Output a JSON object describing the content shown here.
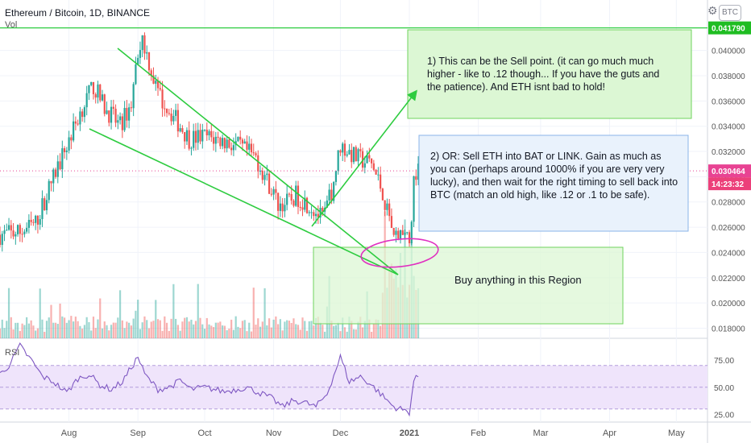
{
  "header": {
    "symbol_title": "Ethereum / Bitcoin, 1D, BINANCE",
    "volume_label": "Vol",
    "rsi_label": "RSI",
    "currency_button": "BTC"
  },
  "price_tags": {
    "resistance": "0.041790",
    "current": "0.030464",
    "countdown": "14:23:32"
  },
  "annotations": {
    "sell_note": "1)  This can be the Sell point.  (it can go much much higher - like to .12 though... If you have the guts and the patience).  And ETH isnt bad to hold!",
    "or_note": "2)  OR:  Sell ETH into BAT or LINK.  Gain as much as you can (perhaps around 1000% if you are very very lucky), and then wait for the right timing to sell back into BTC (match an old high, like .12 or .1 to be safe).",
    "buy_note": "Buy anything in this Region"
  },
  "colors": {
    "up": "#26a69a",
    "down": "#ef5350",
    "trend_line": "#2ecc40",
    "rsi_line": "#7e57c2",
    "rsi_band": "#efe4fb",
    "price_tag": "#e84393",
    "resistance_tag": "#1fbd22",
    "countdown_tag": "#ec407a",
    "sell_box": "#dcf7d4",
    "or_box": "#e9f2fc",
    "buy_box": "#dcf7d4",
    "circle": "#e030c0"
  },
  "chart_data": {
    "type": "candlestick",
    "title": "Ethereum / Bitcoin, 1D, BINANCE",
    "price_axis_ticks": [
      "0.018000",
      "0.020000",
      "0.022000",
      "0.024000",
      "0.026000",
      "0.028000",
      "0.030000",
      "0.032000",
      "0.034000",
      "0.036000",
      "0.038000",
      "0.040000"
    ],
    "price_range": [
      0.0172,
      0.044
    ],
    "rsi_axis_ticks": [
      "25.00",
      "50.00",
      "75.00"
    ],
    "rsi_range": [
      18,
      95
    ],
    "rsi_band": [
      30,
      70
    ],
    "time_axis_ticks": [
      "Aug",
      "Sep",
      "Oct",
      "Nov",
      "Dec",
      "2021",
      "Feb",
      "Mar",
      "Apr",
      "May"
    ],
    "date_range": [
      "2020-07-01",
      "2021-05-15"
    ],
    "last_close": 0.030464,
    "resistance_level": 0.04179,
    "price_path": [
      [
        "2020-07-01",
        0.0254
      ],
      [
        "2020-07-10",
        0.0256
      ],
      [
        "2020-07-17",
        0.0263
      ],
      [
        "2020-07-24",
        0.0295
      ],
      [
        "2020-07-31",
        0.0325
      ],
      [
        "2020-08-07",
        0.0355
      ],
      [
        "2020-08-12",
        0.0372
      ],
      [
        "2020-08-17",
        0.0355
      ],
      [
        "2020-08-24",
        0.034
      ],
      [
        "2020-08-29",
        0.0358
      ],
      [
        "2020-09-01",
        0.04
      ],
      [
        "2020-09-03",
        0.041
      ],
      [
        "2020-09-10",
        0.0365
      ],
      [
        "2020-09-17",
        0.0348
      ],
      [
        "2020-09-24",
        0.033
      ],
      [
        "2020-10-01",
        0.0332
      ],
      [
        "2020-10-10",
        0.0328
      ],
      [
        "2020-10-17",
        0.0323
      ],
      [
        "2020-10-24",
        0.0315
      ],
      [
        "2020-10-31",
        0.029
      ],
      [
        "2020-11-03",
        0.0278
      ],
      [
        "2020-11-08",
        0.028
      ],
      [
        "2020-11-11",
        0.0285
      ],
      [
        "2020-11-17",
        0.0278
      ],
      [
        "2020-11-23",
        0.0266
      ],
      [
        "2020-11-27",
        0.0288
      ],
      [
        "2020-12-01",
        0.0325
      ],
      [
        "2020-12-08",
        0.0315
      ],
      [
        "2020-12-15",
        0.031
      ],
      [
        "2020-12-20",
        0.0288
      ],
      [
        "2020-12-24",
        0.0262
      ],
      [
        "2020-12-27",
        0.0252
      ],
      [
        "2020-12-29",
        0.0258
      ],
      [
        "2021-01-01",
        0.0246
      ],
      [
        "2021-01-03",
        0.0295
      ],
      [
        "2021-01-05",
        0.030464
      ]
    ],
    "rsi_path": [
      [
        "2020-07-01",
        62
      ],
      [
        "2020-07-05",
        70
      ],
      [
        "2020-07-10",
        88
      ],
      [
        "2020-07-15",
        75
      ],
      [
        "2020-07-20",
        60
      ],
      [
        "2020-07-25",
        55
      ],
      [
        "2020-07-31",
        45
      ],
      [
        "2020-08-05",
        58
      ],
      [
        "2020-08-10",
        62
      ],
      [
        "2020-08-15",
        52
      ],
      [
        "2020-08-20",
        48
      ],
      [
        "2020-08-25",
        55
      ],
      [
        "2020-09-01",
        78
      ],
      [
        "2020-09-04",
        62
      ],
      [
        "2020-09-10",
        48
      ],
      [
        "2020-09-15",
        50
      ],
      [
        "2020-09-20",
        56
      ],
      [
        "2020-09-25",
        48
      ],
      [
        "2020-10-01",
        50
      ],
      [
        "2020-10-10",
        46
      ],
      [
        "2020-10-20",
        50
      ],
      [
        "2020-10-31",
        40
      ],
      [
        "2020-11-05",
        32
      ],
      [
        "2020-11-10",
        38
      ],
      [
        "2020-11-15",
        36
      ],
      [
        "2020-11-20",
        32
      ],
      [
        "2020-11-25",
        44
      ],
      [
        "2020-12-01",
        78
      ],
      [
        "2020-12-05",
        55
      ],
      [
        "2020-12-10",
        60
      ],
      [
        "2020-12-15",
        52
      ],
      [
        "2020-12-20",
        42
      ],
      [
        "2020-12-25",
        32
      ],
      [
        "2020-12-28",
        30
      ],
      [
        "2021-01-01",
        27
      ],
      [
        "2021-01-03",
        56
      ],
      [
        "2021-01-05",
        60
      ]
    ]
  }
}
